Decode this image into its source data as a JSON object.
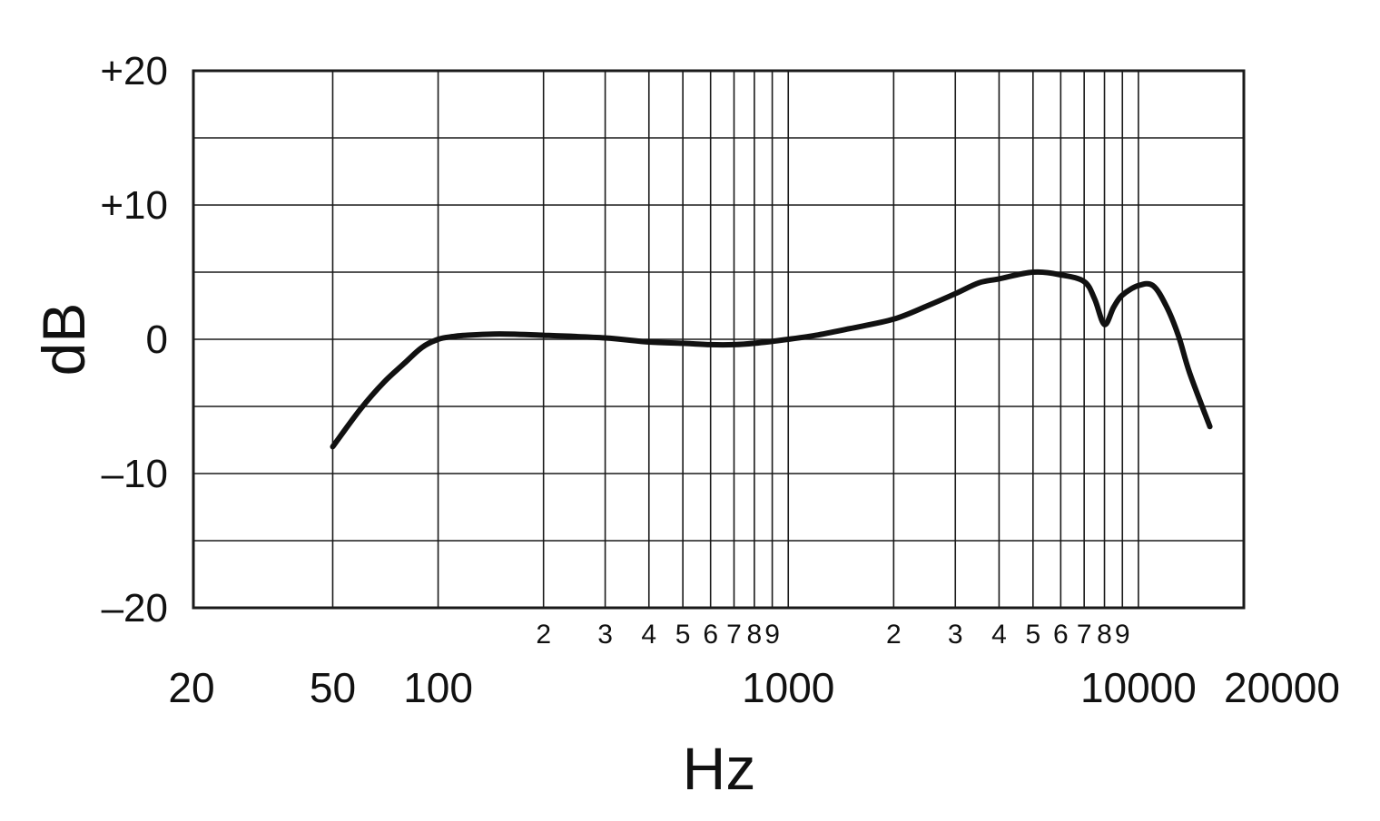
{
  "chart_data": {
    "type": "line",
    "title": "",
    "xlabel": "Hz",
    "ylabel": "dB",
    "xscale": "log",
    "xlim": [
      20,
      20000
    ],
    "ylim": [
      -20,
      20
    ],
    "grid": true,
    "x_major_ticks": [
      {
        "value": 20,
        "label": "20"
      },
      {
        "value": 50,
        "label": "50"
      },
      {
        "value": 100,
        "label": "100"
      },
      {
        "value": 1000,
        "label": "1000"
      },
      {
        "value": 10000,
        "label": "10000"
      },
      {
        "value": 20000,
        "label": "20000"
      }
    ],
    "x_minor_ticks": [
      {
        "value": 200,
        "label": "2"
      },
      {
        "value": 300,
        "label": "3"
      },
      {
        "value": 400,
        "label": "4"
      },
      {
        "value": 500,
        "label": "5"
      },
      {
        "value": 600,
        "label": "6"
      },
      {
        "value": 700,
        "label": "7"
      },
      {
        "value": 800,
        "label": "8"
      },
      {
        "value": 900,
        "label": "9"
      },
      {
        "value": 2000,
        "label": "2"
      },
      {
        "value": 3000,
        "label": "3"
      },
      {
        "value": 4000,
        "label": "4"
      },
      {
        "value": 5000,
        "label": "5"
      },
      {
        "value": 6000,
        "label": "6"
      },
      {
        "value": 7000,
        "label": "7"
      },
      {
        "value": 8000,
        "label": "8"
      },
      {
        "value": 9000,
        "label": "9"
      }
    ],
    "y_ticks": [
      {
        "value": 20,
        "label": "+20"
      },
      {
        "value": 10,
        "label": "+10"
      },
      {
        "value": 0,
        "label": "0"
      },
      {
        "value": -10,
        "label": "–10"
      },
      {
        "value": -20,
        "label": "–20"
      }
    ],
    "y_gridlines": [
      20,
      15,
      10,
      5,
      0,
      -5,
      -10,
      -15,
      -20
    ],
    "series": [
      {
        "color": "#111111",
        "points": [
          [
            50,
            -8.0
          ],
          [
            60,
            -5.2
          ],
          [
            70,
            -3.2
          ],
          [
            80,
            -1.8
          ],
          [
            90,
            -0.6
          ],
          [
            100,
            0.0
          ],
          [
            110,
            0.2
          ],
          [
            120,
            0.3
          ],
          [
            150,
            0.4
          ],
          [
            200,
            0.3
          ],
          [
            300,
            0.1
          ],
          [
            400,
            -0.2
          ],
          [
            500,
            -0.3
          ],
          [
            600,
            -0.4
          ],
          [
            700,
            -0.4
          ],
          [
            800,
            -0.3
          ],
          [
            1000,
            0.0
          ],
          [
            1200,
            0.3
          ],
          [
            1500,
            0.8
          ],
          [
            2000,
            1.5
          ],
          [
            2500,
            2.5
          ],
          [
            3000,
            3.4
          ],
          [
            3500,
            4.2
          ],
          [
            4000,
            4.5
          ],
          [
            5000,
            5.0
          ],
          [
            6000,
            4.8
          ],
          [
            7000,
            4.3
          ],
          [
            7500,
            3.0
          ],
          [
            8000,
            1.1
          ],
          [
            8500,
            2.4
          ],
          [
            9000,
            3.3
          ],
          [
            10000,
            4.0
          ],
          [
            11000,
            4.0
          ],
          [
            12000,
            2.5
          ],
          [
            13000,
            0.3
          ],
          [
            14000,
            -2.5
          ],
          [
            16000,
            -6.5
          ]
        ]
      }
    ]
  }
}
